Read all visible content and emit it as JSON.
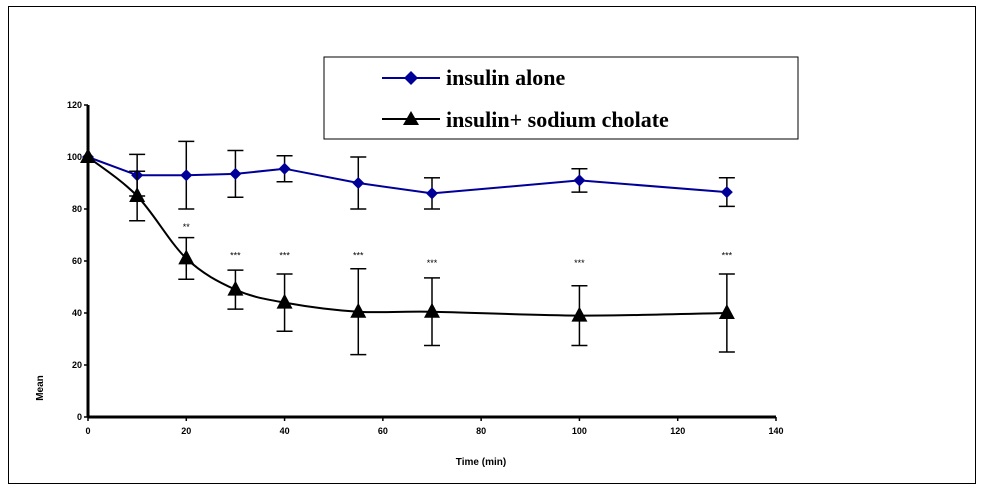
{
  "chart_data": {
    "type": "line",
    "title": "",
    "xlabel": "Time (min)",
    "ylabel": "Mean",
    "xlim": [
      0,
      140
    ],
    "ylim": [
      0,
      120
    ],
    "x_ticks": [
      0,
      20,
      40,
      60,
      80,
      100,
      120,
      140
    ],
    "y_ticks": [
      0,
      20,
      40,
      60,
      80,
      100,
      120
    ],
    "grid": false,
    "legend_position": "top-center",
    "series": [
      {
        "name": "insulin alone",
        "color": "#000099",
        "marker": "diamond",
        "x": [
          0,
          10,
          20,
          30,
          40,
          55,
          70,
          100,
          130
        ],
        "y": [
          100,
          93,
          93,
          93.5,
          95.5,
          90,
          86,
          91,
          86.5
        ],
        "error": [
          0,
          8,
          13,
          9,
          5,
          10,
          6,
          4.5,
          5.5
        ]
      },
      {
        "name": "insulin+ sodium cholate",
        "color": "#000000",
        "marker": "triangle",
        "x": [
          0,
          10,
          20,
          30,
          40,
          55,
          70,
          100,
          130
        ],
        "y": [
          100,
          85,
          61,
          49,
          44,
          40.5,
          40.5,
          39,
          40
        ],
        "error": [
          0,
          9.5,
          8,
          7.5,
          11,
          16.5,
          13,
          11.5,
          15
        ]
      }
    ],
    "annotations": [
      {
        "x": 20,
        "y": 72,
        "text": "**"
      },
      {
        "x": 30,
        "y": 61,
        "text": "***"
      },
      {
        "x": 40,
        "y": 61,
        "text": "***"
      },
      {
        "x": 55,
        "y": 61,
        "text": "***"
      },
      {
        "x": 70,
        "y": 58,
        "text": "***"
      },
      {
        "x": 100,
        "y": 58,
        "text": "***"
      },
      {
        "x": 130,
        "y": 61,
        "text": "***"
      }
    ]
  }
}
